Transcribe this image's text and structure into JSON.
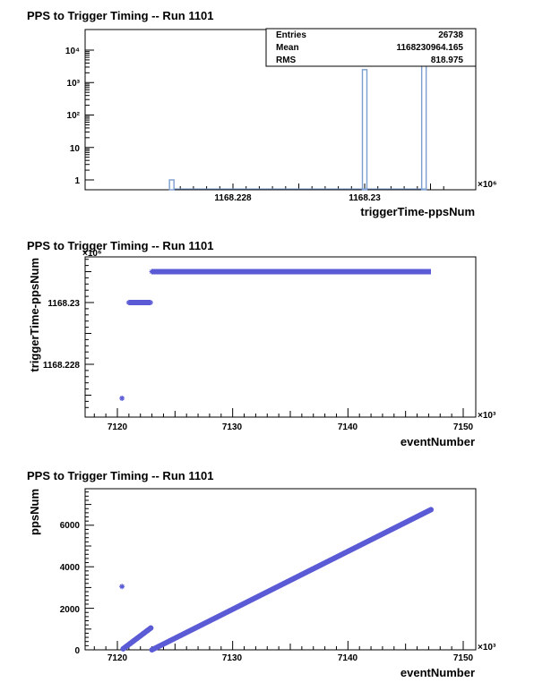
{
  "chart_data": [
    {
      "type": "histogram",
      "title": "PPS to Trigger Timing -- Run 1101",
      "xlabel": "triggerTime-ppsNum",
      "ylabel": "",
      "x_multiplier": "×10⁶",
      "x_ticks": [
        "1168.228",
        "1168.23"
      ],
      "y_scale": "log",
      "y_ticks": [
        "1",
        "10",
        "10²",
        "10³",
        "10⁴"
      ],
      "stats": [
        {
          "label": "Entries",
          "value": "26738"
        },
        {
          "label": "Mean",
          "value": "1168230964.165"
        },
        {
          "label": "RMS",
          "value": "818.975"
        }
      ],
      "bins": [
        {
          "x": 1168227.07,
          "count": 1
        },
        {
          "x": 1168230.0,
          "count": 2500
        },
        {
          "x": 1168230.9,
          "count": 24237
        }
      ],
      "color": "#7b9dcf"
    },
    {
      "type": "scatter",
      "title": "PPS to Trigger Timing -- Run 1101",
      "xlabel": "eventNumber",
      "ylabel": "triggerTime-ppsNum",
      "x_multiplier": "×10³",
      "y_multiplier": "×10⁶",
      "x_ticks": [
        "7120",
        "7130",
        "7140",
        "7150"
      ],
      "y_ticks": [
        "1168.228",
        "1168.23"
      ],
      "segments": [
        {
          "x_from": 7121.0,
          "x_to": 7122.9,
          "y": 1168230.0
        },
        {
          "x_from": 7123.0,
          "x_to": 7147.2,
          "y": 1168231.0
        }
      ],
      "outliers": [
        {
          "x": 7120.4,
          "y": 1168226.9
        }
      ],
      "color": "#5b5bd6"
    },
    {
      "type": "scatter",
      "title": "PPS to Trigger Timing -- Run 1101",
      "xlabel": "eventNumber",
      "ylabel": "ppsNum",
      "x_multiplier": "×10³",
      "x_ticks": [
        "7120",
        "7130",
        "7140",
        "7150"
      ],
      "y_ticks": [
        "0",
        "2000",
        "4000",
        "6000"
      ],
      "segments": [
        {
          "x_from": 7120.5,
          "x_to": 7122.9,
          "y_from": 50,
          "y_to": 1050
        },
        {
          "x_from": 7123.0,
          "x_to": 7147.2,
          "y_from": 0,
          "y_to": 6750
        }
      ],
      "outliers": [
        {
          "x": 7120.4,
          "y": 3050
        }
      ],
      "color": "#5b5bd6"
    }
  ]
}
